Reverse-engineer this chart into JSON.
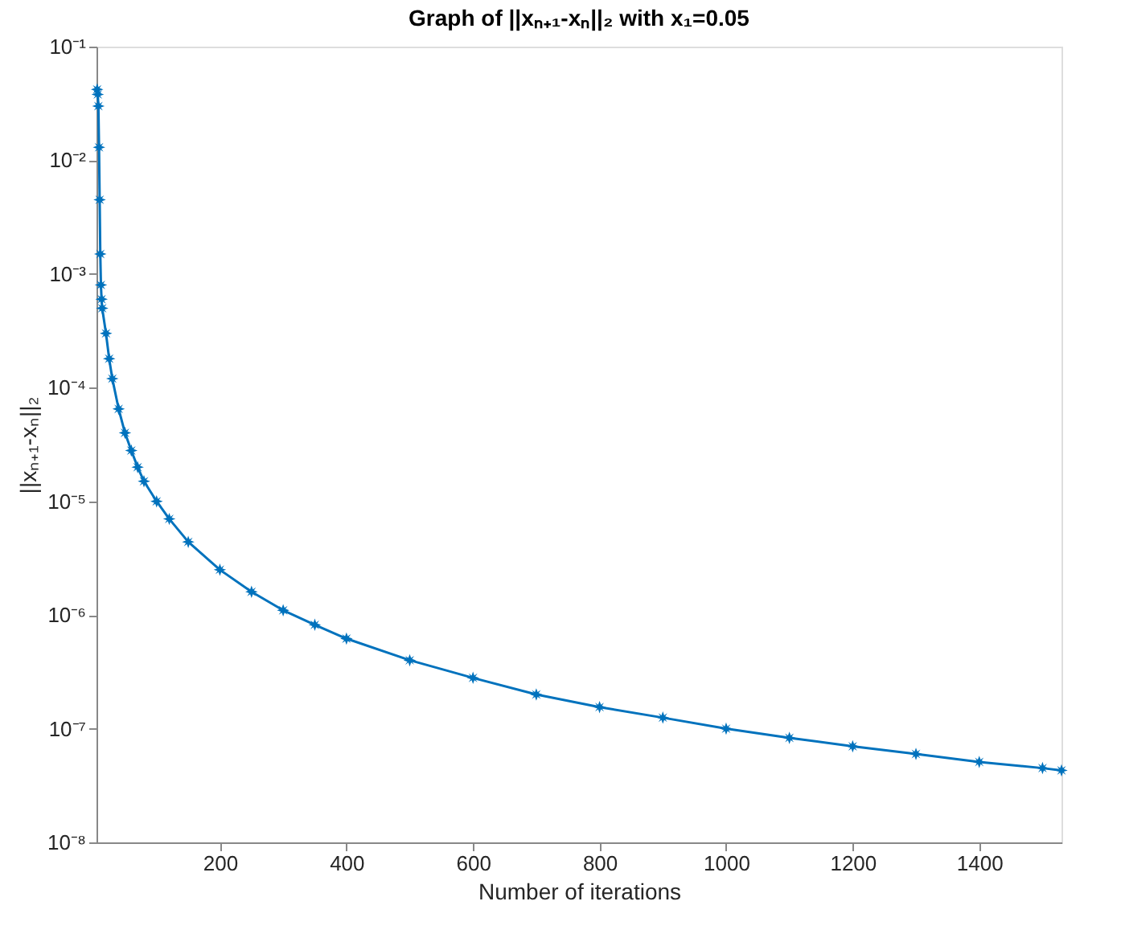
{
  "chart_data": {
    "type": "line",
    "title": "Graph of ||xₙ₊₁-xₙ||₂ with x₁=0.05",
    "xlabel": "Number of iterations",
    "ylabel": "||xₙ₊₁-xₙ||₂",
    "x": [
      6,
      7,
      8,
      9,
      10,
      11,
      12,
      13,
      14,
      20,
      25,
      30,
      40,
      50,
      60,
      70,
      80,
      100,
      120,
      150,
      200,
      250,
      300,
      350,
      400,
      500,
      600,
      700,
      800,
      900,
      1000,
      1100,
      1200,
      1300,
      1400,
      1500,
      1530
    ],
    "series": [
      {
        "color": "#0072bd",
        "values": [
          0.042,
          0.038,
          0.03,
          0.013,
          0.0045,
          0.0015,
          0.0008,
          0.0006,
          0.0005,
          0.0003,
          0.00018,
          0.00012,
          6.5e-05,
          4e-05,
          2.8e-05,
          2e-05,
          1.5e-05,
          1e-05,
          7e-06,
          4.4e-06,
          2.5e-06,
          1.6e-06,
          1.1e-06,
          8.2e-07,
          6.2e-07,
          4e-07,
          2.8e-07,
          2e-07,
          1.55e-07,
          1.25e-07,
          1e-07,
          8.3e-08,
          7e-08,
          6e-08,
          5.1e-08,
          4.5e-08,
          4.3e-08
        ]
      }
    ],
    "xlim": [
      5,
      1530
    ],
    "xticks": [
      200,
      400,
      600,
      800,
      1000,
      1200,
      1400
    ],
    "ylim": [
      1e-08,
      0.1
    ],
    "yticks": [
      {
        "value": 1e-08,
        "label": "10⁻⁸"
      },
      {
        "value": 1e-07,
        "label": "10⁻⁷"
      },
      {
        "value": 1e-06,
        "label": "10⁻⁶"
      },
      {
        "value": 1e-05,
        "label": "10⁻⁵"
      },
      {
        "value": 0.0001,
        "label": "10⁻⁴"
      },
      {
        "value": 0.001,
        "label": "10⁻³"
      },
      {
        "value": 0.01,
        "label": "10⁻²"
      },
      {
        "value": 0.1,
        "label": "10⁻¹"
      }
    ],
    "log": true,
    "grid": false,
    "marker": "star",
    "line_style": "solid"
  }
}
